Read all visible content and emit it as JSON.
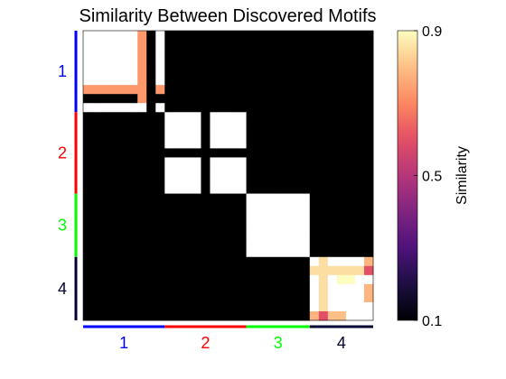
{
  "chart_data": {
    "type": "heatmap",
    "title": "Similarity Between Discovered Motifs",
    "n": 32,
    "groups": [
      {
        "label": "1",
        "start": 0,
        "end": 9,
        "color": "#0000ff"
      },
      {
        "label": "2",
        "start": 9,
        "end": 18,
        "color": "#ff0000"
      },
      {
        "label": "3",
        "start": 18,
        "end": 25,
        "color": "#00ff00"
      },
      {
        "label": "4",
        "start": 25,
        "end": 32,
        "color": "#000033"
      }
    ],
    "background_value": 0.0,
    "block_diagonal": [
      {
        "start": 0,
        "end": 9,
        "value": 1.0
      },
      {
        "start": 9,
        "end": 18,
        "value": 1.0
      },
      {
        "start": 18,
        "end": 25,
        "value": 1.0
      },
      {
        "start": 25,
        "end": 32,
        "value": 1.0
      }
    ],
    "cell_overrides": [
      {
        "rows": [
          0,
          6
        ],
        "cols": [
          6
        ],
        "value": 0.73
      },
      {
        "rows": [
          6
        ],
        "cols": [
          0,
          9
        ],
        "value": 0.73
      },
      {
        "rows": [
          7,
          8
        ],
        "cols": [
          6
        ],
        "value": 0.73
      },
      {
        "rows": [
          0,
          9
        ],
        "cols": [
          7,
          8
        ],
        "value": 0.0
      },
      {
        "rows": [
          7,
          8
        ],
        "cols": [
          0,
          9
        ],
        "value": 0.0
      },
      {
        "rows": [
          7,
          8
        ],
        "cols": [
          6
        ],
        "value": 0.73
      },
      {
        "rows": [
          9,
          18
        ],
        "cols": [
          13
        ],
        "value": 0.0
      },
      {
        "rows": [
          13
        ],
        "cols": [
          9,
          18
        ],
        "value": 0.0
      },
      {
        "rows": [
          10,
          11
        ],
        "cols": [
          13
        ],
        "value": 0.0
      },
      {
        "rows": [
          25,
          32
        ],
        "cols": [
          26
        ],
        "value": 0.85
      },
      {
        "rows": [
          26
        ],
        "cols": [
          25,
          32
        ],
        "value": 0.85
      },
      {
        "rows": [
          26
        ],
        "cols": [
          31
        ],
        "value": 0.6
      },
      {
        "rows": [
          31
        ],
        "cols": [
          26
        ],
        "value": 0.6
      },
      {
        "rows": [
          27
        ],
        "cols": [
          28,
          30
        ],
        "value": 0.9
      },
      {
        "rows": [
          28,
          30
        ],
        "cols": [
          31
        ],
        "value": 0.78
      },
      {
        "rows": [
          31
        ],
        "cols": [
          25
        ],
        "value": 0.78
      },
      {
        "rows": [
          31
        ],
        "cols": [
          27,
          29
        ],
        "value": 0.8
      },
      {
        "rows": [
          25
        ],
        "cols": [
          31
        ],
        "value": 0.78
      }
    ],
    "colorbar": {
      "min": 0.1,
      "max": 0.9,
      "ticks": [
        0.1,
        0.5,
        0.9
      ],
      "label": "Similarity",
      "colormap": "magma"
    },
    "grid": false
  }
}
